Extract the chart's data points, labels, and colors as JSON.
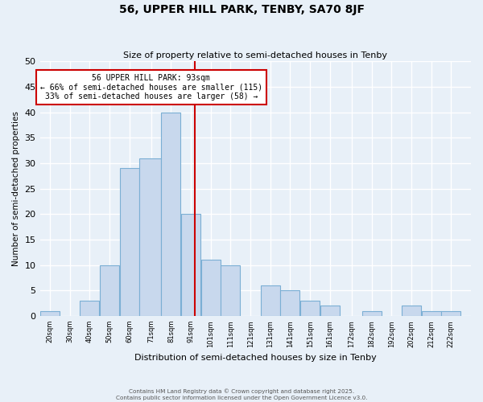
{
  "title": "56, UPPER HILL PARK, TENBY, SA70 8JF",
  "subtitle": "Size of property relative to semi-detached houses in Tenby",
  "xlabel": "Distribution of semi-detached houses by size in Tenby",
  "ylabel": "Number of semi-detached properties",
  "bin_edges": [
    15,
    25,
    35,
    45,
    55,
    65,
    76,
    86,
    96,
    106,
    116,
    126,
    136,
    146,
    156,
    166,
    177,
    187,
    197,
    207,
    217,
    227
  ],
  "bar_heights": [
    1,
    0,
    3,
    10,
    29,
    31,
    40,
    20,
    11,
    10,
    0,
    6,
    5,
    3,
    2,
    0,
    1,
    0,
    2,
    1,
    1
  ],
  "bar_color": "#c8d8ed",
  "bar_edgecolor": "#7bafd4",
  "tick_labels": [
    "20sqm",
    "30sqm",
    "40sqm",
    "50sqm",
    "60sqm",
    "71sqm",
    "81sqm",
    "91sqm",
    "101sqm",
    "111sqm",
    "121sqm",
    "131sqm",
    "141sqm",
    "151sqm",
    "161sqm",
    "172sqm",
    "182sqm",
    "192sqm",
    "202sqm",
    "212sqm",
    "222sqm"
  ],
  "tick_positions": [
    20,
    30,
    40,
    50,
    60,
    71,
    81,
    91,
    101,
    111,
    121,
    131,
    141,
    151,
    161,
    172,
    182,
    192,
    202,
    212,
    222
  ],
  "ylim": [
    0,
    50
  ],
  "yticks": [
    0,
    5,
    10,
    15,
    20,
    25,
    30,
    35,
    40,
    45,
    50
  ],
  "vline_x": 93,
  "vline_color": "#cc0000",
  "annotation_text": "56 UPPER HILL PARK: 93sqm\n← 66% of semi-detached houses are smaller (115)\n33% of semi-detached houses are larger (58) →",
  "annotation_box_color": "#ffffff",
  "annotation_box_edgecolor": "#cc0000",
  "bg_color": "#e8f0f8",
  "grid_color": "#ffffff",
  "footer_line1": "Contains HM Land Registry data © Crown copyright and database right 2025.",
  "footer_line2": "Contains public sector information licensed under the Open Government Licence v3.0."
}
